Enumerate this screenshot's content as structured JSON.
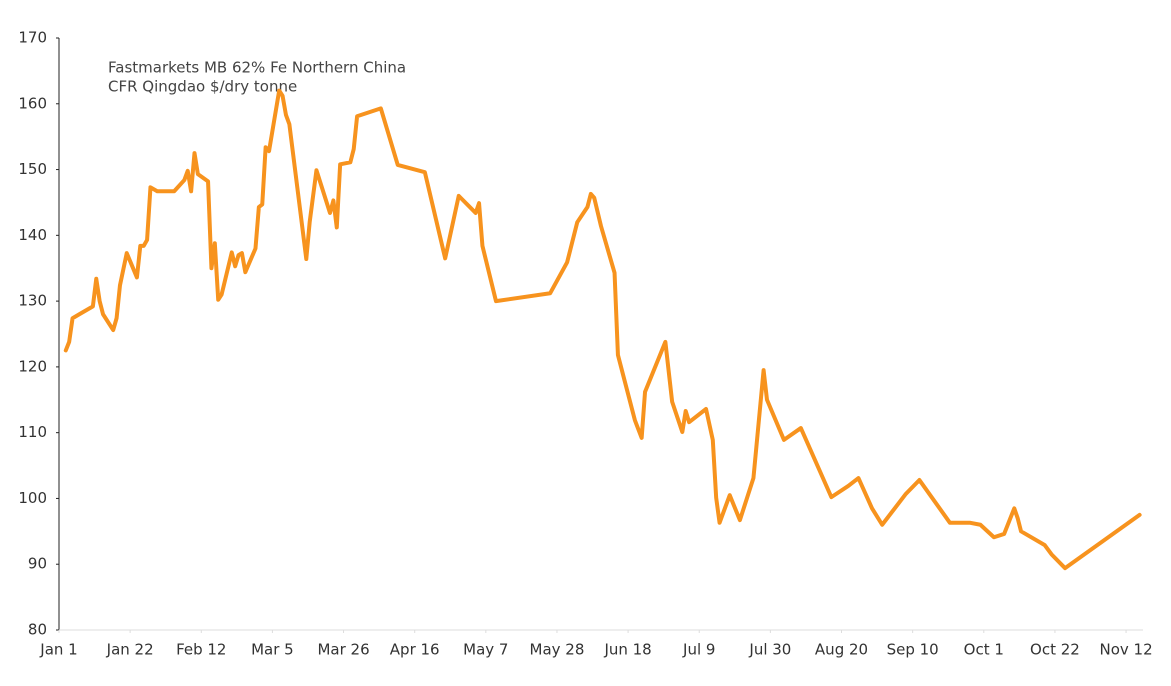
{
  "chart_data": {
    "type": "line",
    "title": [
      "Fastmarkets MB 62% Fe Northern China",
      "CFR Qingdao $/dry tonne"
    ],
    "x": [
      2,
      3,
      4,
      6,
      10,
      11,
      12,
      13,
      16,
      17,
      18,
      20,
      23,
      24,
      25,
      26,
      27,
      29,
      34,
      37,
      38,
      39,
      40,
      41,
      44,
      45,
      46,
      47,
      48,
      51,
      52,
      53,
      54,
      55,
      58,
      59,
      60,
      61,
      62,
      65,
      66,
      67,
      68,
      73,
      74,
      76,
      80,
      81,
      82,
      83,
      86,
      87,
      88,
      95,
      100,
      108,
      114,
      118,
      123,
      124,
      125,
      129,
      145,
      150,
      153,
      156,
      157,
      158,
      160,
      164,
      165,
      170,
      172,
      173,
      179,
      181,
      184,
      185,
      186,
      191,
      193,
      194,
      195,
      198,
      201,
      205,
      208,
      209,
      214,
      219,
      228,
      233,
      236,
      240,
      243,
      250,
      254,
      263,
      269,
      272,
      276,
      279,
      282,
      283,
      284,
      291,
      293,
      297,
      319
    ],
    "series": [
      {
        "name": "Fastmarkets MB 62% Fe Northern China CFR Qingdao",
        "color": "#f7931e",
        "values": [
          122.5,
          123.8,
          127.4,
          128,
          129.2,
          133.4,
          130,
          128,
          125.6,
          127.4,
          132.4,
          137.3,
          133.6,
          138.4,
          138.4,
          139.3,
          147.3,
          146.7,
          146.7,
          148.4,
          149.8,
          146.7,
          152.5,
          149.3,
          148.2,
          135,
          138.8,
          130.2,
          131,
          137.4,
          135.3,
          137,
          137.3,
          134.4,
          138,
          144.3,
          144.7,
          153.4,
          152.8,
          162,
          161.2,
          158.3,
          156.9,
          136.4,
          142,
          149.9,
          143.4,
          145.3,
          141.2,
          150.8,
          151.1,
          153.1,
          158.1,
          159.3,
          150.7,
          149.6,
          136.5,
          146,
          143.4,
          144.9,
          138.4,
          130,
          131.2,
          135.9,
          142,
          144.3,
          146.3,
          145.7,
          141.4,
          134.3,
          121.8,
          111.9,
          109.2,
          116.2,
          123.8,
          114.7,
          110.1,
          113.3,
          111.6,
          113.6,
          108.9,
          100.1,
          96.3,
          100.5,
          96.7,
          103.1,
          119.5,
          115,
          108.9,
          110.7,
          100.2,
          101.9,
          103.1,
          98.5,
          96,
          100.7,
          102.8,
          96.3,
          96.3,
          96,
          94.1,
          94.6,
          98.5,
          97,
          95,
          92.9,
          91.5,
          89.4,
          97.5
        ]
      }
    ],
    "xlim": [
      0,
      320
    ],
    "xticks": [
      {
        "value": 0,
        "label": "Jan 1"
      },
      {
        "value": 21,
        "label": "Jan 22"
      },
      {
        "value": 42,
        "label": "Feb 12"
      },
      {
        "value": 63,
        "label": "Mar 5"
      },
      {
        "value": 84,
        "label": "Mar 26"
      },
      {
        "value": 105,
        "label": "Apr 16"
      },
      {
        "value": 126,
        "label": "May 7"
      },
      {
        "value": 147,
        "label": "May 28"
      },
      {
        "value": 168,
        "label": "Jun 18"
      },
      {
        "value": 189,
        "label": "Jul 9"
      },
      {
        "value": 210,
        "label": "Jul 30"
      },
      {
        "value": 231,
        "label": "Aug 20"
      },
      {
        "value": 252,
        "label": "Sep 10"
      },
      {
        "value": 273,
        "label": "Oct 1"
      },
      {
        "value": 294,
        "label": "Oct 22"
      },
      {
        "value": 315,
        "label": "Nov 12"
      }
    ],
    "ylim": [
      80,
      170
    ],
    "yticks": [
      80,
      90,
      100,
      110,
      120,
      130,
      140,
      150,
      160,
      170
    ],
    "grid": false
  }
}
